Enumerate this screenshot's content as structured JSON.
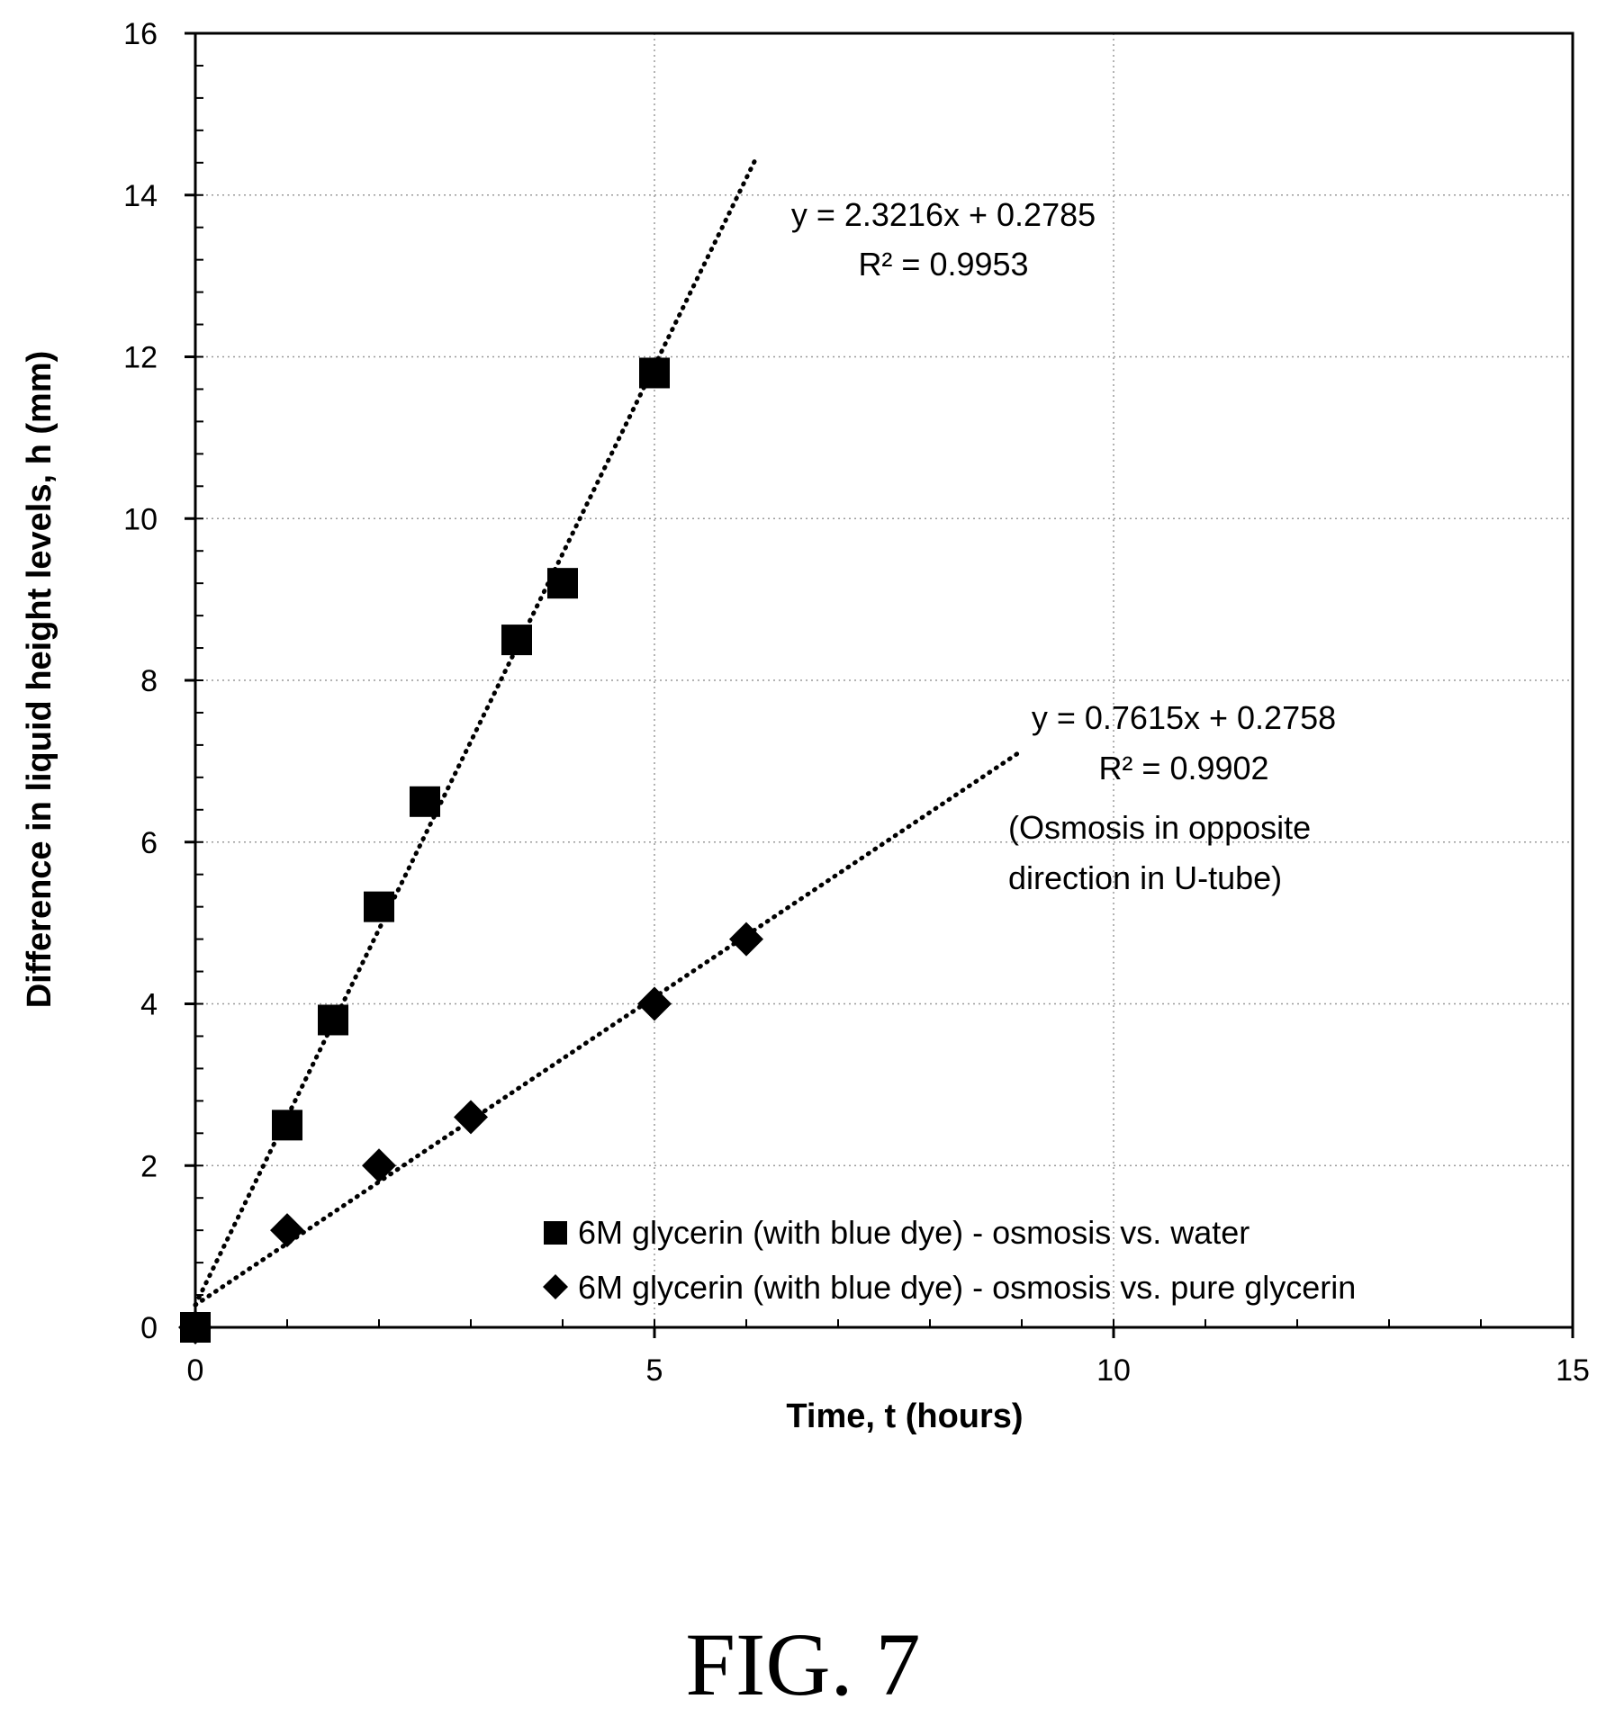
{
  "figure_caption": "FIG. 7",
  "chart_data": {
    "type": "scatter",
    "xlabel": "Time, t (hours)",
    "ylabel": "Difference in liquid height levels, h (mm)",
    "xlim": [
      0,
      15
    ],
    "ylim": [
      0,
      16
    ],
    "x_ticks": [
      0,
      5,
      10,
      15
    ],
    "y_ticks": [
      0,
      2,
      4,
      6,
      8,
      10,
      12,
      14,
      16
    ],
    "x_minor_step": 1,
    "y_minor_step": 0.4,
    "grid": "major, dotted",
    "legend_placement": "bottom-right",
    "series": [
      {
        "name": "6M glycerin (with blue dye) - osmosis vs. water",
        "marker": "square",
        "color": "#000000",
        "points": [
          [
            0,
            0
          ],
          [
            1,
            2.5
          ],
          [
            1.5,
            3.8
          ],
          [
            2,
            5.2
          ],
          [
            2.5,
            6.5
          ],
          [
            3.5,
            8.5
          ],
          [
            4,
            9.2
          ],
          [
            5,
            11.8
          ]
        ],
        "trendline": {
          "slope": 2.3216,
          "intercept": 0.2785,
          "x_range": [
            0,
            6.1
          ]
        },
        "annotation_lines": [
          "y = 2.3216x + 0.2785",
          "R² = 0.9953"
        ]
      },
      {
        "name": "6M glycerin (with blue dye) - osmosis vs. pure glycerin",
        "marker": "diamond",
        "color": "#000000",
        "points": [
          [
            0,
            0
          ],
          [
            1,
            1.2
          ],
          [
            2,
            2.0
          ],
          [
            3,
            2.6
          ],
          [
            5,
            4.0
          ],
          [
            6,
            4.8
          ]
        ],
        "trendline": {
          "slope": 0.7615,
          "intercept": 0.2758,
          "x_range": [
            0,
            9
          ]
        },
        "annotation_lines": [
          "y = 0.7615x + 0.2758",
          "R² = 0.9902",
          "(Osmosis in opposite",
          "direction in U-tube)"
        ]
      }
    ]
  }
}
